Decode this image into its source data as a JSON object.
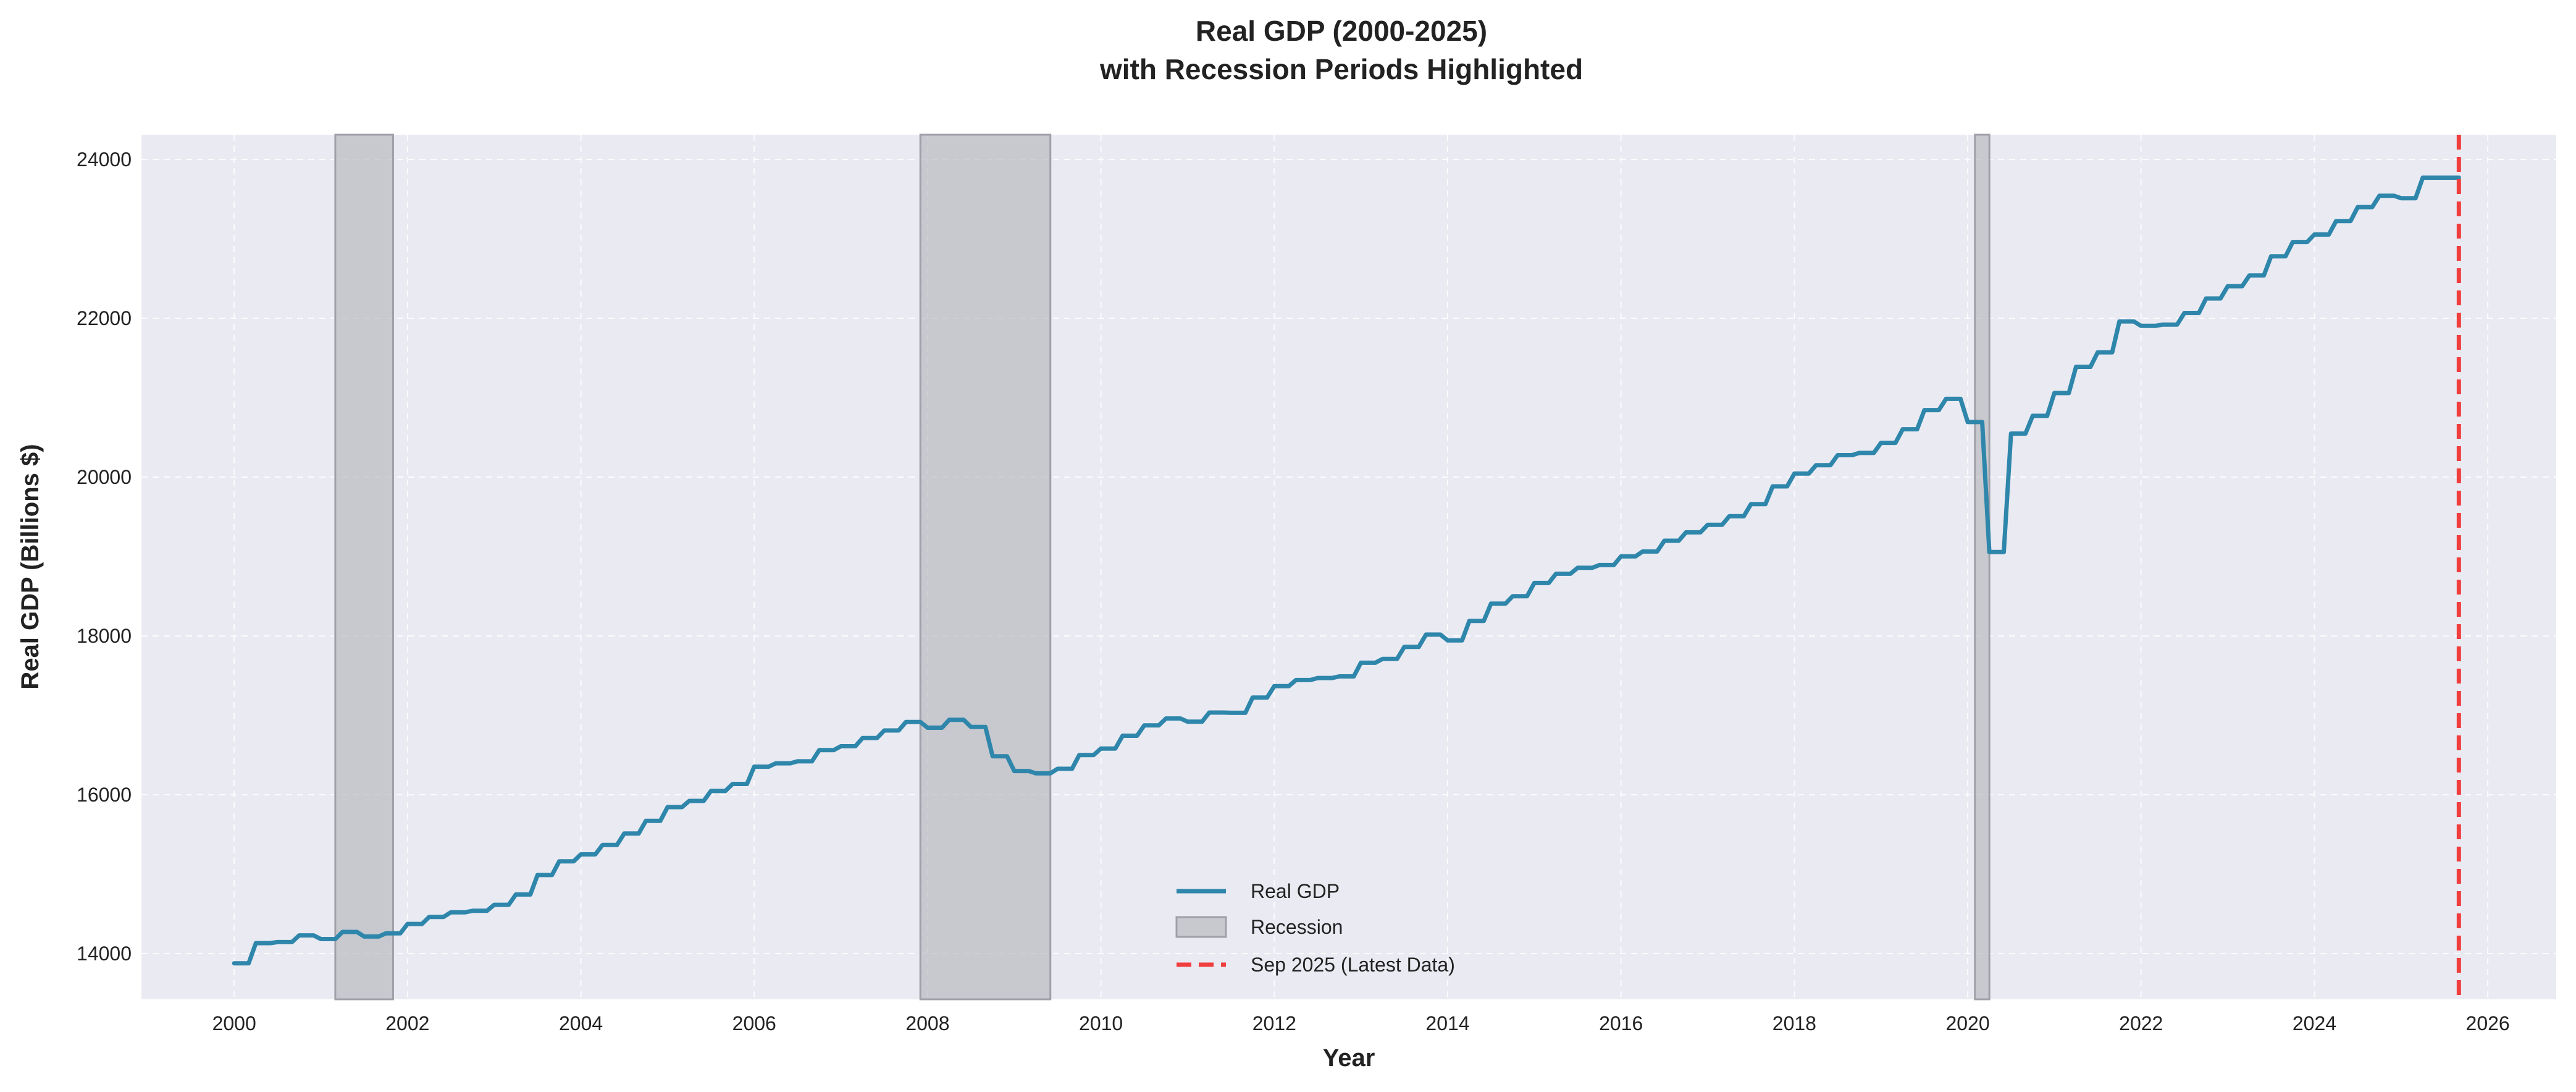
{
  "chart_data": {
    "type": "line",
    "title": "Real GDP (2000-2025)",
    "subtitle": "with Recession Periods Highlighted",
    "xlabel": "Year",
    "ylabel": "Real GDP (Billions $)",
    "xlim": [
      1998.93,
      2026.79
    ],
    "ylim": [
      13424,
      24311
    ],
    "xticks": [
      2000,
      2002,
      2004,
      2006,
      2008,
      2010,
      2012,
      2014,
      2016,
      2018,
      2020,
      2022,
      2024,
      2026
    ],
    "yticks": [
      14000,
      16000,
      18000,
      20000,
      22000,
      24000
    ],
    "grid": true,
    "legend_position": "bottom-center",
    "colors": {
      "line": "#2E86AB",
      "recession": "#B0B0B8",
      "latest": "#F03E3E",
      "background": "#EAEAF2"
    },
    "series": [
      {
        "name": "Real GDP",
        "frequency": "quarterly values shown monthly",
        "start": "2000-01",
        "end": "2025-09",
        "values": [
          13878,
          14131,
          14145,
          14229,
          14183,
          14272,
          14215,
          14254,
          14373,
          14461,
          14520,
          14538,
          14614,
          14744,
          14989,
          15162,
          15249,
          15367,
          15512,
          15671,
          15844,
          15922,
          16047,
          16136,
          16353,
          16396,
          16421,
          16562,
          16611,
          16714,
          16809,
          16916,
          16844,
          16943,
          16854,
          16485,
          16299,
          16269,
          16327,
          16500,
          16582,
          16743,
          16873,
          16960,
          16920,
          17035,
          17032,
          17223,
          17367,
          17444,
          17470,
          17490,
          17662,
          17710,
          17861,
          18016,
          17944,
          18188,
          18406,
          18500,
          18666,
          18783,
          18857,
          18892,
          19001,
          19063,
          19198,
          19304,
          19398,
          19507,
          19660,
          19883,
          20044,
          20150,
          20276,
          20304,
          20431,
          20602,
          20843,
          20985,
          20693,
          19056,
          20548,
          20771,
          21058,
          21389,
          21571,
          21960,
          21904,
          21920,
          22066,
          22249,
          22404,
          22539,
          22780,
          22960,
          23054,
          23223,
          23400,
          23543,
          23512,
          23770,
          23770
        ]
      }
    ],
    "recessions": [
      {
        "start": "2001-04",
        "end": "2001-11"
      },
      {
        "start": "2008-01",
        "end": "2009-06"
      },
      {
        "start": "2020-03",
        "end": "2020-04"
      }
    ],
    "latest_marker": {
      "label": "Sep 2025 (Latest Data)",
      "date": "2025-09"
    },
    "legend": [
      "Real GDP",
      "Recession",
      "Sep 2025 (Latest Data)"
    ]
  }
}
